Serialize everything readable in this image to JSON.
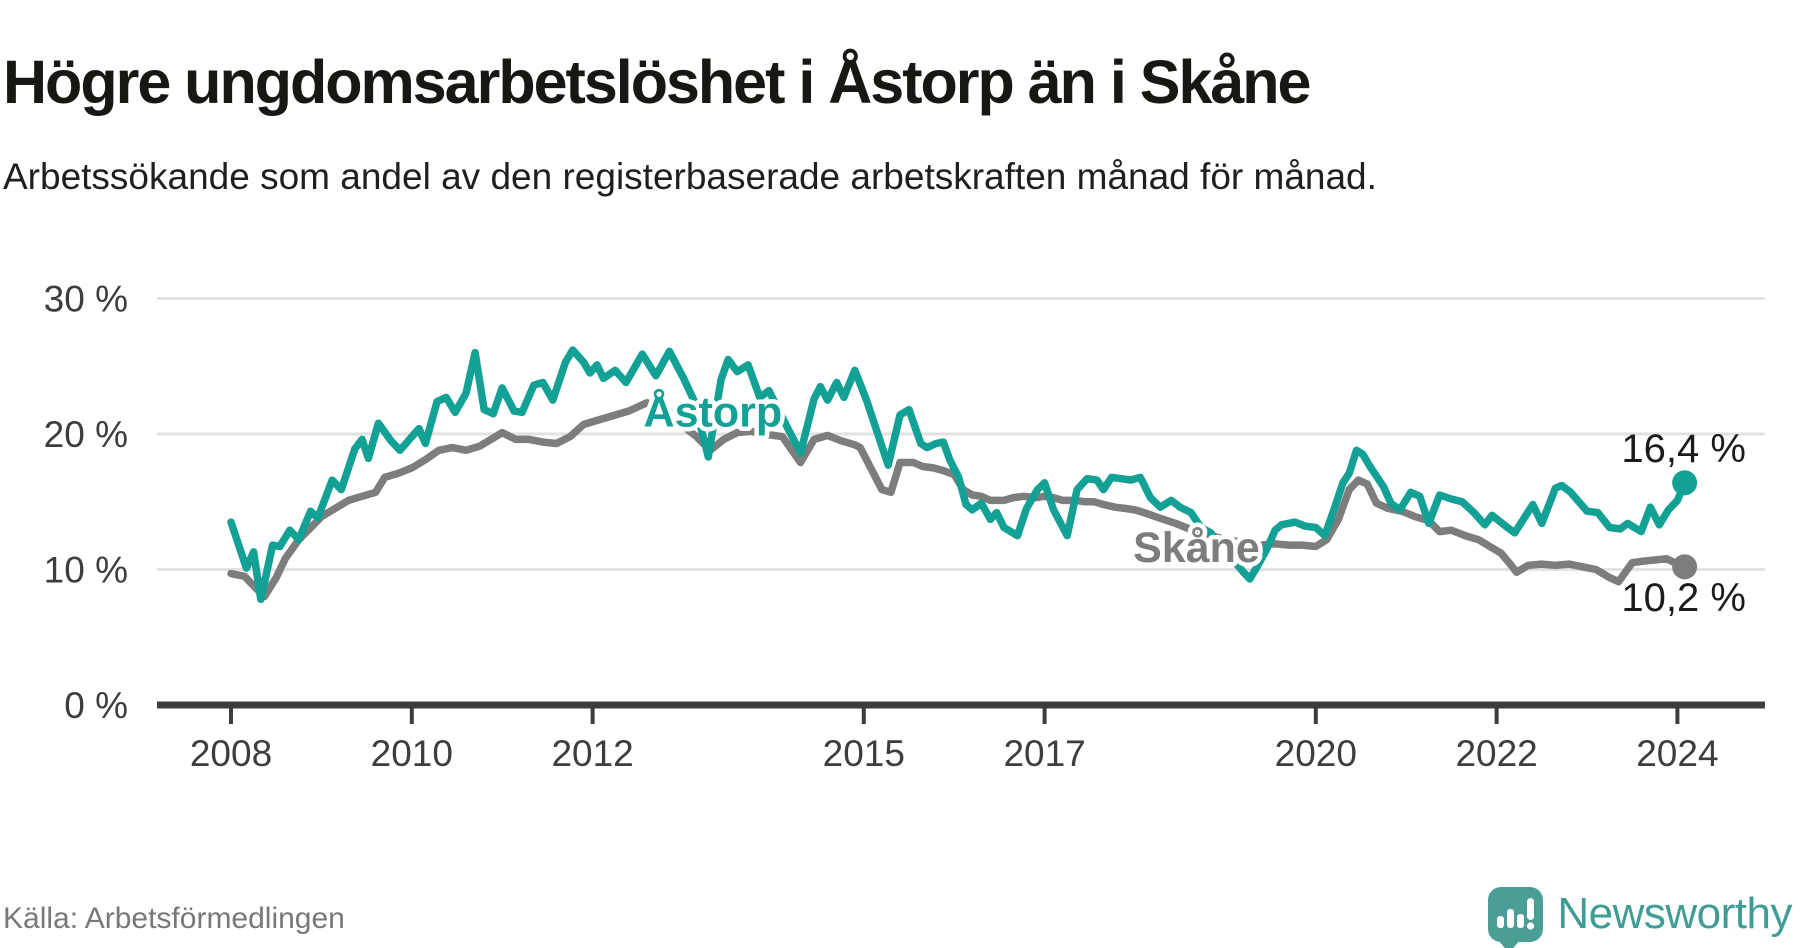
{
  "header": {
    "title": "Högre ungdomsarbetslöshet i Åstorp än i Skåne",
    "subtitle": "Arbetssökande som andel av den registerbaserade arbetskraften månad för månad."
  },
  "footer": {
    "source": "Källa: Arbetsförmedlingen",
    "brand": "Newsworthy"
  },
  "colors": {
    "astorp": "#14a195",
    "skane": "#7d7d7d",
    "axis": "#3d3d3d",
    "grid": "#e2e2e2",
    "end_label_text": "#1b1b1b",
    "brand_teal": "#3f9d95"
  },
  "chart_data": {
    "type": "line",
    "title": "Högre ungdomsarbetslöshet i Åstorp än i Skåne",
    "subtitle": "Arbetssökande som andel av den registerbaserade arbetskraften månad för månad.",
    "unit": "%",
    "grid": true,
    "legend_position": "inline-labels",
    "xlim": [
      2007.2,
      2025.2
    ],
    "ylim": [
      0,
      32
    ],
    "y_ticks": [
      {
        "value": 30,
        "label": "30 %"
      },
      {
        "value": 20,
        "label": "20 %"
      },
      {
        "value": 10,
        "label": "10 %"
      },
      {
        "value": 0,
        "label": "0 %"
      }
    ],
    "x_ticks": [
      {
        "value": 2008,
        "label": "2008"
      },
      {
        "value": 2010,
        "label": "2010"
      },
      {
        "value": 2012,
        "label": "2012"
      },
      {
        "value": 2015,
        "label": "2015"
      },
      {
        "value": 2017,
        "label": "2017"
      },
      {
        "value": 2020,
        "label": "2020"
      },
      {
        "value": 2022,
        "label": "2022"
      },
      {
        "value": 2024,
        "label": "2024"
      }
    ],
    "series": [
      {
        "name": "Skåne",
        "color": "#7d7d7d",
        "end_label": "10,2 %",
        "last_value": 10.2,
        "points": [
          [
            2008.0,
            9.7
          ],
          [
            2008.15,
            9.5
          ],
          [
            2008.25,
            8.8
          ],
          [
            2008.37,
            8.0
          ],
          [
            2008.5,
            9.4
          ],
          [
            2008.6,
            10.8
          ],
          [
            2008.75,
            12.2
          ],
          [
            2009.0,
            13.9
          ],
          [
            2009.2,
            14.7
          ],
          [
            2009.3,
            15.1
          ],
          [
            2009.45,
            15.4
          ],
          [
            2009.6,
            15.7
          ],
          [
            2009.7,
            16.8
          ],
          [
            2009.85,
            17.1
          ],
          [
            2010.0,
            17.5
          ],
          [
            2010.15,
            18.1
          ],
          [
            2010.3,
            18.8
          ],
          [
            2010.45,
            19.0
          ],
          [
            2010.6,
            18.8
          ],
          [
            2010.75,
            19.1
          ],
          [
            2010.9,
            19.7
          ],
          [
            2011.0,
            20.1
          ],
          [
            2011.15,
            19.6
          ],
          [
            2011.3,
            19.6
          ],
          [
            2011.45,
            19.4
          ],
          [
            2011.6,
            19.3
          ],
          [
            2011.75,
            19.8
          ],
          [
            2011.9,
            20.7
          ],
          [
            2012.05,
            21.0
          ],
          [
            2012.2,
            21.3
          ],
          [
            2012.4,
            21.7
          ],
          [
            2012.6,
            22.3
          ],
          [
            2012.8,
            22.0
          ],
          [
            2013.0,
            20.6
          ],
          [
            2013.15,
            19.8
          ],
          [
            2013.3,
            18.8
          ],
          [
            2013.45,
            19.6
          ],
          [
            2013.6,
            20.1
          ],
          [
            2013.75,
            20.2
          ],
          [
            2013.9,
            20.0
          ],
          [
            2014.1,
            19.8
          ],
          [
            2014.3,
            17.9
          ],
          [
            2014.45,
            19.6
          ],
          [
            2014.6,
            19.9
          ],
          [
            2014.75,
            19.5
          ],
          [
            2014.9,
            19.2
          ],
          [
            2014.96,
            19.0
          ],
          [
            2015.2,
            15.9
          ],
          [
            2015.3,
            15.7
          ],
          [
            2015.4,
            17.9
          ],
          [
            2015.55,
            17.9
          ],
          [
            2015.65,
            17.6
          ],
          [
            2015.77,
            17.5
          ],
          [
            2015.88,
            17.3
          ],
          [
            2016.0,
            17.0
          ],
          [
            2016.1,
            15.9
          ],
          [
            2016.2,
            15.5
          ],
          [
            2016.3,
            15.4
          ],
          [
            2016.4,
            15.1
          ],
          [
            2016.55,
            15.1
          ],
          [
            2016.65,
            15.3
          ],
          [
            2016.77,
            15.4
          ],
          [
            2016.9,
            15.3
          ],
          [
            2017.0,
            15.4
          ],
          [
            2017.1,
            15.3
          ],
          [
            2017.2,
            15.1
          ],
          [
            2017.35,
            15.1
          ],
          [
            2017.45,
            15.0
          ],
          [
            2017.55,
            15.0
          ],
          [
            2017.65,
            14.8
          ],
          [
            2017.78,
            14.6
          ],
          [
            2017.9,
            14.5
          ],
          [
            2018.0,
            14.4
          ],
          [
            2018.1,
            14.2
          ],
          [
            2018.27,
            13.8
          ],
          [
            2018.45,
            13.4
          ],
          [
            2018.6,
            13.0
          ],
          [
            2018.8,
            12.6
          ],
          [
            2019.0,
            12.2
          ],
          [
            2019.2,
            12.0
          ],
          [
            2019.4,
            11.8
          ],
          [
            2019.55,
            11.9
          ],
          [
            2019.7,
            11.8
          ],
          [
            2019.85,
            11.8
          ],
          [
            2020.0,
            11.7
          ],
          [
            2020.12,
            12.2
          ],
          [
            2020.25,
            13.7
          ],
          [
            2020.37,
            15.9
          ],
          [
            2020.47,
            16.6
          ],
          [
            2020.57,
            16.3
          ],
          [
            2020.67,
            14.9
          ],
          [
            2020.8,
            14.5
          ],
          [
            2020.95,
            14.3
          ],
          [
            2021.1,
            13.9
          ],
          [
            2021.25,
            13.6
          ],
          [
            2021.37,
            12.8
          ],
          [
            2021.5,
            12.9
          ],
          [
            2021.65,
            12.5
          ],
          [
            2021.8,
            12.2
          ],
          [
            2021.95,
            11.6
          ],
          [
            2022.05,
            11.2
          ],
          [
            2022.15,
            10.4
          ],
          [
            2022.22,
            9.8
          ],
          [
            2022.35,
            10.3
          ],
          [
            2022.5,
            10.4
          ],
          [
            2022.65,
            10.3
          ],
          [
            2022.8,
            10.4
          ],
          [
            2022.95,
            10.2
          ],
          [
            2023.1,
            10.0
          ],
          [
            2023.25,
            9.4
          ],
          [
            2023.35,
            9.1
          ],
          [
            2023.5,
            10.5
          ],
          [
            2023.6,
            10.6
          ],
          [
            2023.75,
            10.7
          ],
          [
            2023.88,
            10.8
          ],
          [
            2024.0,
            10.4
          ],
          [
            2024.08,
            10.2
          ]
        ]
      },
      {
        "name": "Åstorp",
        "color": "#14a195",
        "end_label": "16,4 %",
        "last_value": 16.4,
        "points": [
          [
            2008.0,
            13.5
          ],
          [
            2008.17,
            10.1
          ],
          [
            2008.25,
            11.3
          ],
          [
            2008.33,
            7.8
          ],
          [
            2008.46,
            11.8
          ],
          [
            2008.54,
            11.7
          ],
          [
            2008.65,
            12.9
          ],
          [
            2008.75,
            12.2
          ],
          [
            2008.88,
            14.3
          ],
          [
            2008.96,
            13.8
          ],
          [
            2009.12,
            16.6
          ],
          [
            2009.22,
            15.9
          ],
          [
            2009.37,
            18.9
          ],
          [
            2009.45,
            19.6
          ],
          [
            2009.52,
            18.2
          ],
          [
            2009.63,
            20.8
          ],
          [
            2009.77,
            19.5
          ],
          [
            2009.87,
            18.8
          ],
          [
            2010.0,
            19.8
          ],
          [
            2010.08,
            20.4
          ],
          [
            2010.15,
            19.3
          ],
          [
            2010.28,
            22.4
          ],
          [
            2010.38,
            22.7
          ],
          [
            2010.48,
            21.6
          ],
          [
            2010.6,
            23.0
          ],
          [
            2010.7,
            26.0
          ],
          [
            2010.8,
            21.8
          ],
          [
            2010.9,
            21.5
          ],
          [
            2011.0,
            23.4
          ],
          [
            2011.13,
            21.7
          ],
          [
            2011.22,
            21.6
          ],
          [
            2011.35,
            23.6
          ],
          [
            2011.45,
            23.8
          ],
          [
            2011.56,
            22.5
          ],
          [
            2011.7,
            25.3
          ],
          [
            2011.78,
            26.2
          ],
          [
            2011.9,
            25.3
          ],
          [
            2011.97,
            24.5
          ],
          [
            2012.05,
            25.1
          ],
          [
            2012.12,
            24.1
          ],
          [
            2012.25,
            24.7
          ],
          [
            2012.37,
            23.8
          ],
          [
            2012.55,
            25.9
          ],
          [
            2012.7,
            24.3
          ],
          [
            2012.85,
            26.1
          ],
          [
            2013.0,
            24.2
          ],
          [
            2013.12,
            22.5
          ],
          [
            2013.28,
            18.3
          ],
          [
            2013.42,
            24.0
          ],
          [
            2013.5,
            25.5
          ],
          [
            2013.6,
            24.6
          ],
          [
            2013.72,
            25.1
          ],
          [
            2013.85,
            22.7
          ],
          [
            2013.95,
            23.2
          ],
          [
            2014.1,
            21.2
          ],
          [
            2014.3,
            18.6
          ],
          [
            2014.45,
            22.6
          ],
          [
            2014.52,
            23.5
          ],
          [
            2014.6,
            22.5
          ],
          [
            2014.7,
            23.8
          ],
          [
            2014.78,
            22.7
          ],
          [
            2014.9,
            24.7
          ],
          [
            2015.03,
            22.5
          ],
          [
            2015.27,
            17.7
          ],
          [
            2015.4,
            21.4
          ],
          [
            2015.5,
            21.8
          ],
          [
            2015.63,
            19.3
          ],
          [
            2015.7,
            19.0
          ],
          [
            2015.8,
            19.3
          ],
          [
            2015.88,
            19.4
          ],
          [
            2015.95,
            18.1
          ],
          [
            2016.05,
            16.8
          ],
          [
            2016.13,
            14.8
          ],
          [
            2016.2,
            14.4
          ],
          [
            2016.3,
            14.9
          ],
          [
            2016.4,
            13.7
          ],
          [
            2016.47,
            14.2
          ],
          [
            2016.55,
            13.1
          ],
          [
            2016.7,
            12.5
          ],
          [
            2016.8,
            14.5
          ],
          [
            2016.92,
            15.9
          ],
          [
            2017.0,
            16.4
          ],
          [
            2017.1,
            14.4
          ],
          [
            2017.25,
            12.5
          ],
          [
            2017.36,
            15.9
          ],
          [
            2017.47,
            16.7
          ],
          [
            2017.58,
            16.6
          ],
          [
            2017.65,
            15.9
          ],
          [
            2017.74,
            16.8
          ],
          [
            2017.85,
            16.7
          ],
          [
            2017.95,
            16.6
          ],
          [
            2018.06,
            16.8
          ],
          [
            2018.17,
            15.3
          ],
          [
            2018.28,
            14.6
          ],
          [
            2018.4,
            15.1
          ],
          [
            2018.5,
            14.6
          ],
          [
            2018.62,
            14.2
          ],
          [
            2018.73,
            13.1
          ],
          [
            2018.84,
            12.7
          ],
          [
            2019.0,
            11.2
          ],
          [
            2019.1,
            10.6
          ],
          [
            2019.2,
            9.8
          ],
          [
            2019.27,
            9.3
          ],
          [
            2019.35,
            10.2
          ],
          [
            2019.45,
            11.4
          ],
          [
            2019.55,
            12.9
          ],
          [
            2019.62,
            13.3
          ],
          [
            2019.77,
            13.5
          ],
          [
            2019.88,
            13.2
          ],
          [
            2020.0,
            13.1
          ],
          [
            2020.1,
            12.5
          ],
          [
            2020.2,
            14.4
          ],
          [
            2020.3,
            16.4
          ],
          [
            2020.37,
            17.1
          ],
          [
            2020.45,
            18.8
          ],
          [
            2020.52,
            18.5
          ],
          [
            2020.6,
            17.6
          ],
          [
            2020.68,
            16.8
          ],
          [
            2020.75,
            16.1
          ],
          [
            2020.83,
            14.9
          ],
          [
            2020.93,
            14.4
          ],
          [
            2021.05,
            15.7
          ],
          [
            2021.15,
            15.4
          ],
          [
            2021.25,
            13.4
          ],
          [
            2021.37,
            15.5
          ],
          [
            2021.5,
            15.2
          ],
          [
            2021.62,
            15.0
          ],
          [
            2021.75,
            14.2
          ],
          [
            2021.87,
            13.3
          ],
          [
            2021.95,
            14.0
          ],
          [
            2022.1,
            13.2
          ],
          [
            2022.2,
            12.7
          ],
          [
            2022.4,
            14.8
          ],
          [
            2022.5,
            13.4
          ],
          [
            2022.65,
            16.0
          ],
          [
            2022.72,
            16.2
          ],
          [
            2022.82,
            15.7
          ],
          [
            2023.0,
            14.3
          ],
          [
            2023.12,
            14.2
          ],
          [
            2023.25,
            13.1
          ],
          [
            2023.37,
            13.0
          ],
          [
            2023.45,
            13.4
          ],
          [
            2023.6,
            12.8
          ],
          [
            2023.7,
            14.6
          ],
          [
            2023.8,
            13.3
          ],
          [
            2023.9,
            14.4
          ],
          [
            2024.0,
            15.1
          ],
          [
            2024.08,
            16.4
          ]
        ]
      }
    ],
    "series_labels": [
      {
        "name": "Åstorp",
        "anchor_year": 2013.33,
        "anchor_value": 21.6
      },
      {
        "name": "Skåne",
        "anchor_year": 2018.68,
        "anchor_value": 11.6
      }
    ]
  }
}
